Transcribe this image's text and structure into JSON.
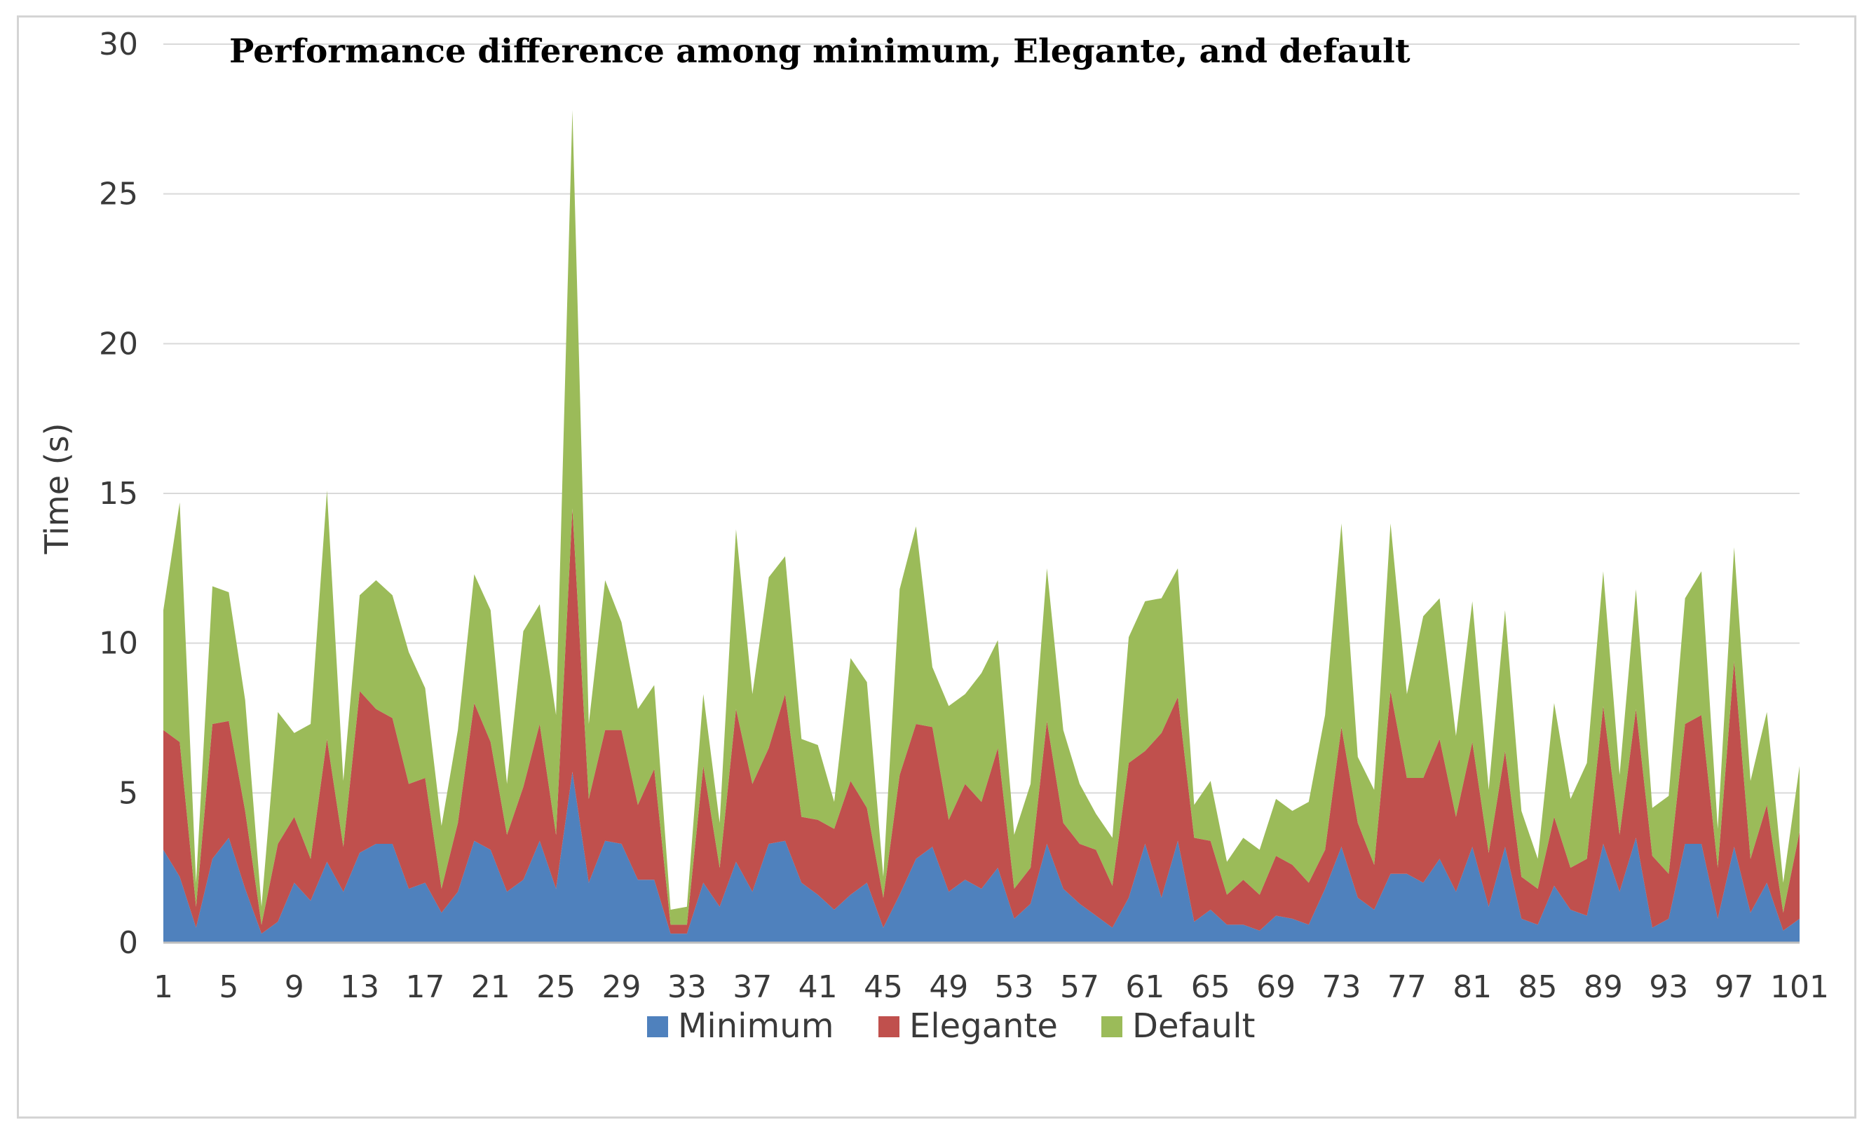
{
  "chart_data": {
    "type": "area",
    "stacked": true,
    "title": "Performance difference among minimum, Elegante, and default",
    "xlabel": "",
    "ylabel": "Time (s)",
    "ylim": [
      0,
      30
    ],
    "yticks": [
      "0",
      "5",
      "10",
      "15",
      "20",
      "25",
      "30"
    ],
    "x_start": 1,
    "x_end": 101,
    "xtick_step": 4,
    "grid": true,
    "legend_position": "bottom",
    "series": [
      {
        "name": "Minimum",
        "color": "#4f81bd",
        "values": [
          3.1,
          2.2,
          0.5,
          2.8,
          3.5,
          1.8,
          0.3,
          0.7,
          2.0,
          1.4,
          2.7,
          1.7,
          3.0,
          3.3,
          3.3,
          1.8,
          2.0,
          1.0,
          1.7,
          3.4,
          3.1,
          1.7,
          2.1,
          3.4,
          1.8,
          5.7,
          2.0,
          3.4,
          3.3,
          2.1,
          2.1,
          0.3,
          0.3,
          2.0,
          1.2,
          2.7,
          1.7,
          3.3,
          3.4,
          2.0,
          1.6,
          1.1,
          1.6,
          2.0,
          0.5,
          1.6,
          2.8,
          3.2,
          1.7,
          2.1,
          1.8,
          2.5,
          0.8,
          1.3,
          3.3,
          1.8,
          1.3,
          0.9,
          0.5,
          1.5,
          3.3,
          1.5,
          3.4,
          0.7,
          1.1,
          0.6,
          0.6,
          0.4,
          0.9,
          0.8,
          0.6,
          1.8,
          3.2,
          1.5,
          1.1,
          2.3,
          2.3,
          2.0,
          2.8,
          1.7,
          3.2,
          1.2,
          3.2,
          0.8,
          0.6,
          1.9,
          1.1,
          0.9,
          3.3,
          1.7,
          3.5,
          0.5,
          0.8,
          3.3,
          3.3,
          0.8,
          3.2,
          1.0,
          2.0,
          0.4,
          0.8
        ]
      },
      {
        "name": "Elegante",
        "color": "#c0504d",
        "values": [
          4.0,
          4.5,
          0.7,
          4.5,
          3.9,
          2.6,
          0.3,
          2.6,
          2.2,
          1.4,
          4.1,
          1.5,
          5.4,
          4.5,
          4.2,
          3.5,
          3.5,
          0.8,
          2.3,
          4.6,
          3.6,
          1.9,
          3.1,
          3.9,
          1.8,
          8.8,
          2.8,
          3.7,
          3.8,
          2.5,
          3.7,
          0.3,
          0.3,
          3.9,
          1.3,
          5.1,
          3.6,
          3.2,
          4.9,
          2.2,
          2.5,
          2.7,
          3.8,
          2.5,
          1.0,
          4.0,
          4.5,
          4.0,
          2.4,
          3.2,
          2.9,
          4.0,
          1.0,
          1.2,
          4.1,
          2.2,
          2.0,
          2.2,
          1.4,
          4.5,
          3.1,
          5.5,
          4.8,
          2.8,
          2.3,
          1.0,
          1.5,
          1.2,
          2.0,
          1.8,
          1.4,
          1.3,
          4.0,
          2.5,
          1.5,
          6.1,
          3.2,
          3.5,
          4.0,
          2.5,
          3.5,
          1.8,
          3.2,
          1.4,
          1.2,
          2.3,
          1.4,
          1.9,
          4.6,
          1.9,
          4.3,
          2.4,
          1.5,
          4.0,
          4.3,
          1.7,
          6.2,
          1.8,
          2.6,
          0.6,
          2.9
        ]
      },
      {
        "name": "Default",
        "color": "#9bbb59",
        "values": [
          4.0,
          8.0,
          0.8,
          4.6,
          4.3,
          3.7,
          0.6,
          4.4,
          2.8,
          4.5,
          8.3,
          2.2,
          3.2,
          4.3,
          4.1,
          4.4,
          3.0,
          2.1,
          3.1,
          4.3,
          4.4,
          1.7,
          5.2,
          4.0,
          4.0,
          13.3,
          2.5,
          5.0,
          3.6,
          3.2,
          2.8,
          0.5,
          0.6,
          2.4,
          1.5,
          6.0,
          3.0,
          5.7,
          4.6,
          2.6,
          2.5,
          0.9,
          4.1,
          4.2,
          0.7,
          6.2,
          6.6,
          2.0,
          3.8,
          3.0,
          4.3,
          3.6,
          1.8,
          2.8,
          5.1,
          3.1,
          2.0,
          1.2,
          1.6,
          4.2,
          5.0,
          4.5,
          4.3,
          1.1,
          2.0,
          1.1,
          1.4,
          1.5,
          1.9,
          1.8,
          2.7,
          4.5,
          6.8,
          2.2,
          2.5,
          5.6,
          2.8,
          5.4,
          4.7,
          2.7,
          4.7,
          2.1,
          4.7,
          2.2,
          1.0,
          3.8,
          2.3,
          3.2,
          4.5,
          2.0,
          4.0,
          1.6,
          2.6,
          4.2,
          4.8,
          1.3,
          3.8,
          2.6,
          3.1,
          1.0,
          2.2
        ]
      }
    ]
  }
}
